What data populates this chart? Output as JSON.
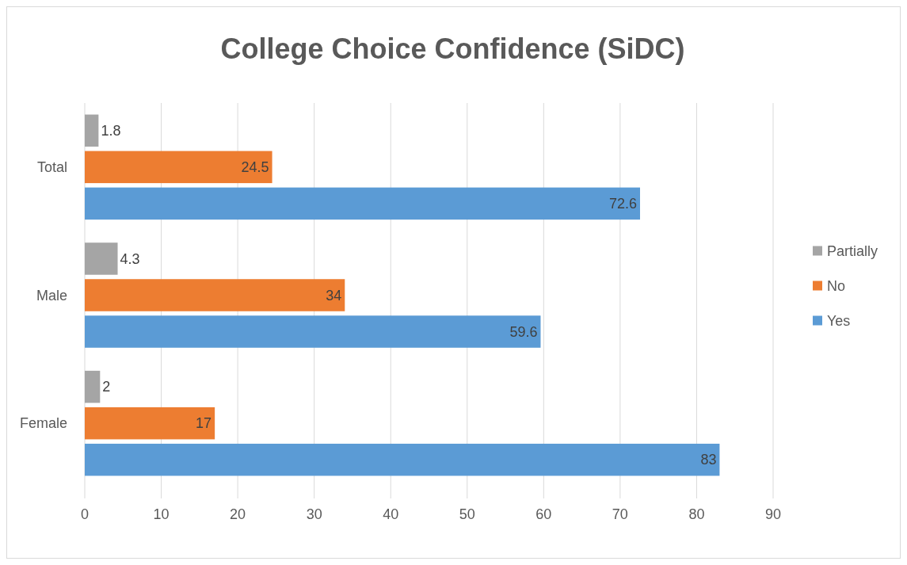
{
  "chart_data": {
    "type": "bar",
    "orientation": "horizontal",
    "title": "College Choice Confidence (SiDC)",
    "categories": [
      "Total",
      "Male",
      "Female"
    ],
    "series": [
      {
        "name": "Partially",
        "color": "#a5a5a5",
        "values": [
          1.8,
          4.3,
          2
        ]
      },
      {
        "name": "No",
        "color": "#ed7d31",
        "values": [
          24.5,
          34,
          17
        ]
      },
      {
        "name": "Yes",
        "color": "#5b9bd5",
        "values": [
          72.6,
          59.6,
          83
        ]
      }
    ],
    "xlim": [
      0,
      90
    ],
    "xticks": [
      0,
      10,
      20,
      30,
      40,
      50,
      60,
      70,
      80,
      90
    ],
    "grid": "x",
    "legend": "right",
    "data_labels": true
  }
}
